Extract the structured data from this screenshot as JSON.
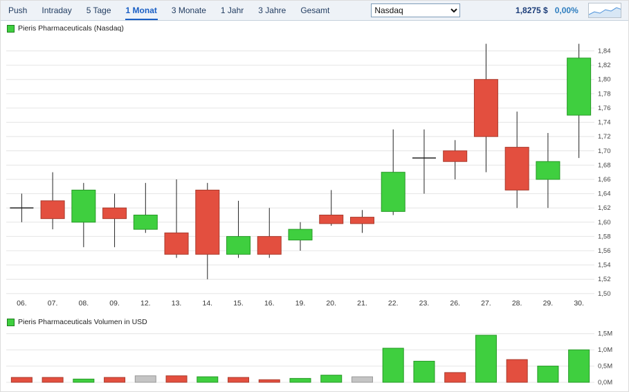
{
  "toolbar": {
    "tabs": [
      {
        "label": "Push",
        "active": false
      },
      {
        "label": "Intraday",
        "active": false
      },
      {
        "label": "5 Tage",
        "active": false
      },
      {
        "label": "1 Monat",
        "active": true
      },
      {
        "label": "3 Monate",
        "active": false
      },
      {
        "label": "1 Jahr",
        "active": false
      },
      {
        "label": "3 Jahre",
        "active": false
      },
      {
        "label": "Gesamt",
        "active": false
      }
    ],
    "exchange_select": {
      "value": "Nasdaq",
      "options": [
        "Nasdaq"
      ]
    },
    "price": "1,8275 $",
    "change": "0,00%"
  },
  "price_section": {
    "legend": "Pieris Pharmaceuticals (Nasdaq)"
  },
  "volume_section": {
    "legend": "Pieris Pharmaceuticals Volumen in USD"
  },
  "colors": {
    "up": "#3fcf3f",
    "up_border": "#259925",
    "down": "#e34f3f",
    "down_border": "#a93a2c",
    "neutral": "#c4c4c4",
    "neutral_border": "#999999",
    "doji": "#222222",
    "wick": "#222222",
    "grid": "#e4e4e4"
  },
  "chart_data": [
    {
      "type": "candlestick",
      "title": "Pieris Pharmaceuticals (Nasdaq)",
      "ylim": [
        1.495,
        1.857
      ],
      "y_tick_values": [
        1.84,
        1.82,
        1.8,
        1.78,
        1.76,
        1.74,
        1.72,
        1.7,
        1.68,
        1.66,
        1.64,
        1.62,
        1.6,
        1.58,
        1.56,
        1.54,
        1.52,
        1.5
      ],
      "y_tick_labels": [
        "1,84",
        "1,82",
        "1,80",
        "1,78",
        "1,76",
        "1,74",
        "1,72",
        "1,70",
        "1,68",
        "1,66",
        "1,64",
        "1,62",
        "1,60",
        "1,58",
        "1,56",
        "1,54",
        "1,52",
        "1,50"
      ],
      "x_labels": [
        "06.",
        "07.",
        "08.",
        "09.",
        "12.",
        "13.",
        "14.",
        "15.",
        "16.",
        "19.",
        "20.",
        "21.",
        "22.",
        "23.",
        "26.",
        "27.",
        "28.",
        "29.",
        "30."
      ],
      "candles": [
        {
          "date": "06.",
          "open": 1.62,
          "high": 1.64,
          "low": 1.6,
          "close": 1.62
        },
        {
          "date": "07.",
          "open": 1.63,
          "high": 1.67,
          "low": 1.59,
          "close": 1.605
        },
        {
          "date": "08.",
          "open": 1.6,
          "high": 1.655,
          "low": 1.565,
          "close": 1.645
        },
        {
          "date": "09.",
          "open": 1.62,
          "high": 1.64,
          "low": 1.565,
          "close": 1.605
        },
        {
          "date": "12.",
          "open": 1.59,
          "high": 1.655,
          "low": 1.585,
          "close": 1.61
        },
        {
          "date": "13.",
          "open": 1.585,
          "high": 1.66,
          "low": 1.55,
          "close": 1.555
        },
        {
          "date": "14.",
          "open": 1.645,
          "high": 1.655,
          "low": 1.52,
          "close": 1.555
        },
        {
          "date": "15.",
          "open": 1.555,
          "high": 1.63,
          "low": 1.55,
          "close": 1.58
        },
        {
          "date": "16.",
          "open": 1.58,
          "high": 1.62,
          "low": 1.55,
          "close": 1.555
        },
        {
          "date": "19.",
          "open": 1.575,
          "high": 1.6,
          "low": 1.56,
          "close": 1.59
        },
        {
          "date": "20.",
          "open": 1.61,
          "high": 1.645,
          "low": 1.595,
          "close": 1.598
        },
        {
          "date": "21.",
          "open": 1.607,
          "high": 1.617,
          "low": 1.585,
          "close": 1.598
        },
        {
          "date": "22.",
          "open": 1.615,
          "high": 1.73,
          "low": 1.61,
          "close": 1.67
        },
        {
          "date": "23.",
          "open": 1.69,
          "high": 1.73,
          "low": 1.64,
          "close": 1.69
        },
        {
          "date": "26.",
          "open": 1.7,
          "high": 1.715,
          "low": 1.66,
          "close": 1.685
        },
        {
          "date": "27.",
          "open": 1.8,
          "high": 1.85,
          "low": 1.67,
          "close": 1.72
        },
        {
          "date": "28.",
          "open": 1.705,
          "high": 1.755,
          "low": 1.62,
          "close": 1.645
        },
        {
          "date": "29.",
          "open": 1.66,
          "high": 1.725,
          "low": 1.62,
          "close": 1.685
        },
        {
          "date": "30.",
          "open": 1.75,
          "high": 1.85,
          "low": 1.69,
          "close": 1.83
        }
      ]
    },
    {
      "type": "bar",
      "title": "Pieris Pharmaceuticals Volumen in USD",
      "ylim": [
        0,
        1.6
      ],
      "y_tick_values": [
        1.5,
        1.0,
        0.5,
        0.0
      ],
      "y_tick_labels": [
        "1,5M",
        "1,0M",
        "0,5M",
        "0,0M"
      ],
      "categories": [
        "06.",
        "07.",
        "08.",
        "09.",
        "12.",
        "13.",
        "14.",
        "15.",
        "16.",
        "19.",
        "20.",
        "21.",
        "22.",
        "23.",
        "26.",
        "27.",
        "28.",
        "29.",
        "30."
      ],
      "values": [
        0.15,
        0.15,
        0.1,
        0.15,
        0.2,
        0.2,
        0.17,
        0.15,
        0.08,
        0.12,
        0.22,
        0.17,
        1.05,
        0.65,
        0.3,
        1.45,
        0.7,
        0.5,
        1.0
      ],
      "bar_colors": [
        "down",
        "down",
        "up",
        "down",
        "neutral",
        "down",
        "up",
        "down",
        "down",
        "up",
        "up",
        "neutral",
        "up",
        "up",
        "down",
        "up",
        "down",
        "up",
        "up"
      ]
    }
  ]
}
